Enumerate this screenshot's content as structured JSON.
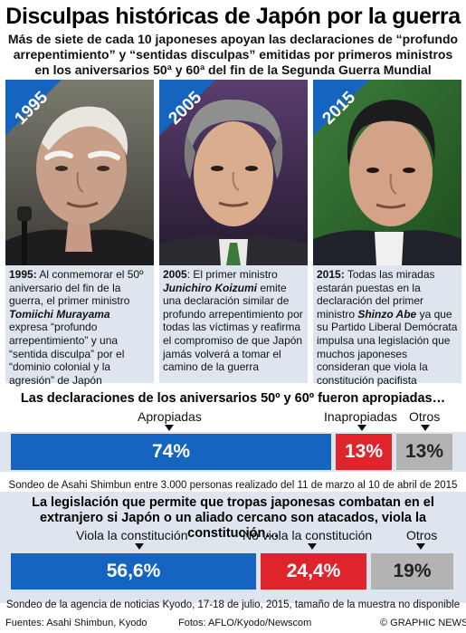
{
  "header": {
    "title": "Disculpas históricas de Japón por la guerra",
    "subtitle": "Más de siete de cada 10 japoneses apoyan las declaraciones de “profundo arrepentimiento” y “sentidas disculpas” emitidas por primeros ministros en los aniversarios 50ª y 60ª del fin de la Segunda Guerra Mundial"
  },
  "panels": [
    {
      "year": "1995",
      "lead": "1995:",
      "text_a": " Al conmemorar el 50º aniversario del fin de la guerra, el primer ministro ",
      "name": "Tomiichi Murayama",
      "text_b": " expresa “profundo arrepentimiento” y una “sentida disculpa” por el “dominio colonial y la agresión” de Japón"
    },
    {
      "year": "2005",
      "lead": "2005",
      "text_a": ": El primer ministro ",
      "name": "Junichiro Koizumi",
      "text_b": " emite una declaración similar de profundo arrepentimiento por todas las víctimas y reafirma el compromiso de que Japón jamás volverá a tomar el camino de la guerra"
    },
    {
      "year": "2015",
      "lead": "2015:",
      "text_a": " Todas las miradas estarán puestas en la declaración del primer ministro ",
      "name": "Shinzo Abe",
      "text_b": " ya que su Partido Liberal Demócrata impulsa una legislación que muchos japoneses consideran que viola la constitución pacifista"
    }
  ],
  "colors": {
    "blue": "#1565c0",
    "red": "#e0242c",
    "grey": "#b3b3b3",
    "band": "#dfe5ee"
  },
  "chart_data": [
    {
      "type": "bar",
      "title": "Las declaraciones de los aniversarios 50º y 60º fueron apropiadas…",
      "categories": [
        "Apropiadas",
        "Inapropiadas",
        "Otros"
      ],
      "values": [
        74,
        13,
        13
      ],
      "value_labels": [
        "74%",
        "13%",
        "13%"
      ],
      "unit": "%",
      "source": "Sondeo de Asahi Shimbun entre 3.000 personas realizado del 11 de marzo al 10 de abril de 2015"
    },
    {
      "type": "bar",
      "title": "La legislación que permite que tropas japonesas combatan en el extranjero si Japón o un aliado cercano son atacados, viola la constitución…",
      "categories": [
        "Viola la constitución",
        "No viola la constitución",
        "Otros"
      ],
      "values": [
        56.6,
        24.4,
        19
      ],
      "value_labels": [
        "56,6%",
        "24,4%",
        "19%"
      ],
      "unit": "%",
      "source": "Sondeo de la agencia de noticias Kyodo, 17-18 de julio, 2015, tamaño de la muestra no disponible"
    }
  ],
  "footer": {
    "sources": "Fuentes: Asahi Shimbun, Kyodo",
    "photos": "Fotos: AFLO/Kyodo/Newscom",
    "credit": "© GRAPHIC NEWS"
  }
}
